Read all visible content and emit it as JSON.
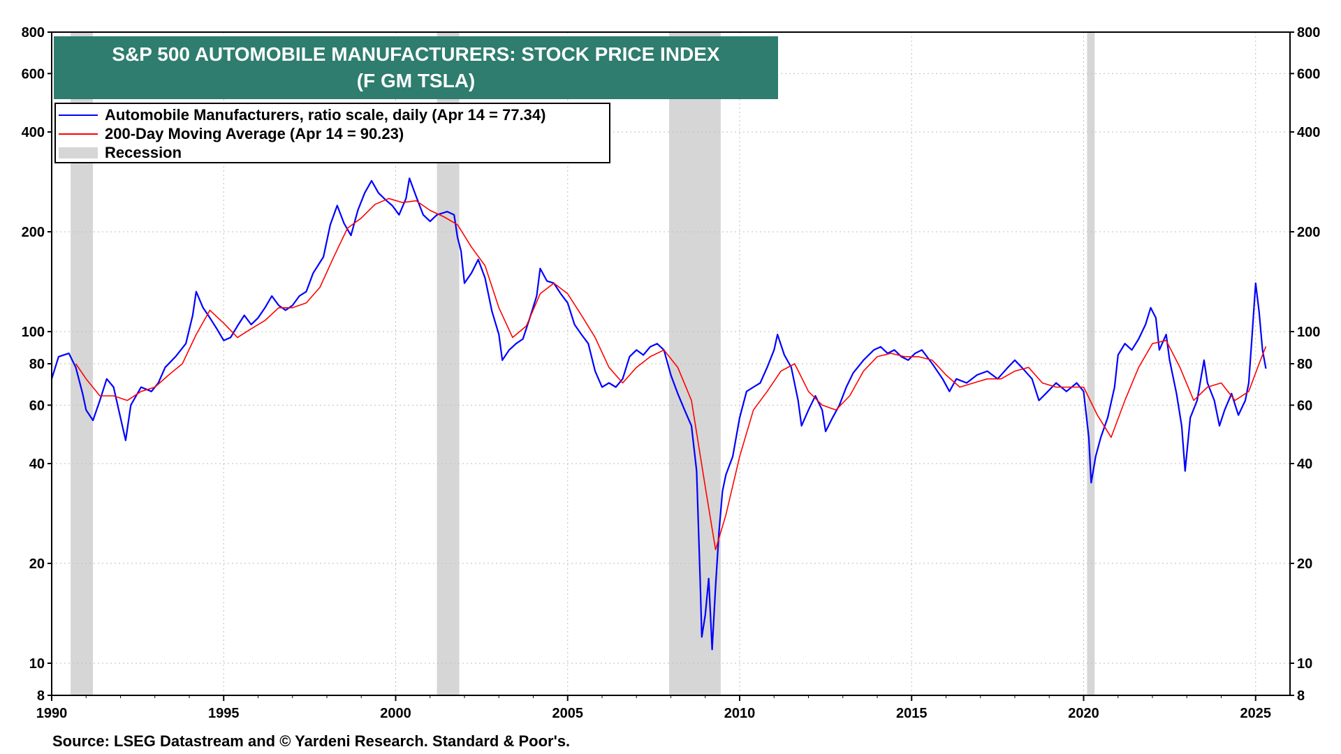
{
  "title": {
    "line1": "S&P 500 AUTOMOBILE MANUFACTURERS: STOCK PRICE INDEX",
    "line2": "(F GM TSLA)"
  },
  "legend": {
    "items": [
      {
        "label": "Automobile Manufacturers, ratio scale, daily (Apr 14 = 77.34)",
        "color": "#0000ff",
        "kind": "line"
      },
      {
        "label": "200-Day Moving Average (Apr 14 = 90.23)",
        "color": "#ff0000",
        "kind": "line"
      },
      {
        "label": "Recession",
        "color": "#d6d6d6",
        "kind": "box"
      }
    ]
  },
  "source": "Source: LSEG Datastream and © Yardeni Research. Standard & Poor's.",
  "chart_data": {
    "type": "line",
    "yscale": "log",
    "xlim": [
      1990,
      2026
    ],
    "ylim": [
      8,
      800
    ],
    "x_ticks": [
      1990,
      1995,
      2000,
      2005,
      2010,
      2015,
      2020,
      2025
    ],
    "y_ticks": [
      8,
      10,
      20,
      40,
      60,
      80,
      100,
      200,
      400,
      600,
      800
    ],
    "grid": true,
    "legend_position": "top-left",
    "recessions": [
      [
        1990.55,
        1991.2
      ],
      [
        2001.2,
        2001.85
      ],
      [
        2007.95,
        2009.45
      ],
      [
        2020.1,
        2020.32
      ]
    ],
    "series": [
      {
        "name": "Automobile Manufacturers, ratio scale, daily",
        "color": "#0000ff",
        "points": [
          [
            1990.0,
            72
          ],
          [
            1990.2,
            84
          ],
          [
            1990.5,
            86
          ],
          [
            1990.7,
            78
          ],
          [
            1990.9,
            65
          ],
          [
            1991.0,
            58
          ],
          [
            1991.2,
            54
          ],
          [
            1991.4,
            62
          ],
          [
            1991.6,
            72
          ],
          [
            1991.8,
            68
          ],
          [
            1992.0,
            55
          ],
          [
            1992.15,
            47
          ],
          [
            1992.3,
            60
          ],
          [
            1992.6,
            68
          ],
          [
            1992.9,
            66
          ],
          [
            1993.1,
            70
          ],
          [
            1993.3,
            78
          ],
          [
            1993.6,
            84
          ],
          [
            1993.9,
            92
          ],
          [
            1994.1,
            112
          ],
          [
            1994.2,
            132
          ],
          [
            1994.4,
            118
          ],
          [
            1994.6,
            110
          ],
          [
            1994.8,
            102
          ],
          [
            1995.0,
            94
          ],
          [
            1995.2,
            96
          ],
          [
            1995.4,
            104
          ],
          [
            1995.6,
            112
          ],
          [
            1995.8,
            105
          ],
          [
            1996.0,
            110
          ],
          [
            1996.2,
            118
          ],
          [
            1996.4,
            128
          ],
          [
            1996.6,
            120
          ],
          [
            1996.8,
            116
          ],
          [
            1997.0,
            120
          ],
          [
            1997.2,
            128
          ],
          [
            1997.4,
            132
          ],
          [
            1997.6,
            150
          ],
          [
            1997.9,
            168
          ],
          [
            1998.1,
            210
          ],
          [
            1998.3,
            240
          ],
          [
            1998.5,
            212
          ],
          [
            1998.7,
            195
          ],
          [
            1998.9,
            232
          ],
          [
            1999.1,
            262
          ],
          [
            1999.3,
            285
          ],
          [
            1999.5,
            262
          ],
          [
            1999.7,
            250
          ],
          [
            1999.9,
            240
          ],
          [
            2000.1,
            225
          ],
          [
            2000.3,
            252
          ],
          [
            2000.4,
            290
          ],
          [
            2000.6,
            255
          ],
          [
            2000.8,
            225
          ],
          [
            2001.0,
            215
          ],
          [
            2001.2,
            225
          ],
          [
            2001.5,
            230
          ],
          [
            2001.7,
            225
          ],
          [
            2001.8,
            192
          ],
          [
            2001.9,
            175
          ],
          [
            2002.0,
            140
          ],
          [
            2002.2,
            150
          ],
          [
            2002.4,
            165
          ],
          [
            2002.6,
            145
          ],
          [
            2002.8,
            115
          ],
          [
            2003.0,
            98
          ],
          [
            2003.1,
            82
          ],
          [
            2003.3,
            88
          ],
          [
            2003.5,
            92
          ],
          [
            2003.7,
            95
          ],
          [
            2003.9,
            110
          ],
          [
            2004.1,
            128
          ],
          [
            2004.2,
            155
          ],
          [
            2004.4,
            142
          ],
          [
            2004.6,
            140
          ],
          [
            2004.8,
            130
          ],
          [
            2005.0,
            122
          ],
          [
            2005.2,
            105
          ],
          [
            2005.4,
            98
          ],
          [
            2005.6,
            92
          ],
          [
            2005.8,
            76
          ],
          [
            2006.0,
            68
          ],
          [
            2006.2,
            70
          ],
          [
            2006.4,
            68
          ],
          [
            2006.6,
            72
          ],
          [
            2006.8,
            84
          ],
          [
            2007.0,
            88
          ],
          [
            2007.2,
            85
          ],
          [
            2007.4,
            90
          ],
          [
            2007.6,
            92
          ],
          [
            2007.8,
            88
          ],
          [
            2008.0,
            74
          ],
          [
            2008.2,
            65
          ],
          [
            2008.4,
            58
          ],
          [
            2008.6,
            52
          ],
          [
            2008.75,
            38
          ],
          [
            2008.85,
            18
          ],
          [
            2008.9,
            12
          ],
          [
            2009.0,
            14
          ],
          [
            2009.1,
            18
          ],
          [
            2009.2,
            11
          ],
          [
            2009.3,
            17
          ],
          [
            2009.4,
            25
          ],
          [
            2009.5,
            33
          ],
          [
            2009.6,
            37
          ],
          [
            2009.8,
            42
          ],
          [
            2010.0,
            55
          ],
          [
            2010.2,
            66
          ],
          [
            2010.4,
            68
          ],
          [
            2010.6,
            70
          ],
          [
            2010.8,
            78
          ],
          [
            2011.0,
            88
          ],
          [
            2011.1,
            98
          ],
          [
            2011.3,
            85
          ],
          [
            2011.5,
            78
          ],
          [
            2011.7,
            62
          ],
          [
            2011.8,
            52
          ],
          [
            2012.0,
            58
          ],
          [
            2012.2,
            64
          ],
          [
            2012.4,
            58
          ],
          [
            2012.5,
            50
          ],
          [
            2012.7,
            55
          ],
          [
            2012.9,
            60
          ],
          [
            2013.1,
            68
          ],
          [
            2013.3,
            75
          ],
          [
            2013.6,
            82
          ],
          [
            2013.9,
            88
          ],
          [
            2014.1,
            90
          ],
          [
            2014.3,
            86
          ],
          [
            2014.5,
            88
          ],
          [
            2014.7,
            84
          ],
          [
            2014.9,
            82
          ],
          [
            2015.1,
            86
          ],
          [
            2015.3,
            88
          ],
          [
            2015.6,
            80
          ],
          [
            2015.9,
            72
          ],
          [
            2016.1,
            66
          ],
          [
            2016.3,
            72
          ],
          [
            2016.6,
            70
          ],
          [
            2016.9,
            74
          ],
          [
            2017.2,
            76
          ],
          [
            2017.5,
            72
          ],
          [
            2017.8,
            78
          ],
          [
            2018.0,
            82
          ],
          [
            2018.2,
            78
          ],
          [
            2018.5,
            72
          ],
          [
            2018.7,
            62
          ],
          [
            2018.9,
            65
          ],
          [
            2019.2,
            70
          ],
          [
            2019.5,
            66
          ],
          [
            2019.8,
            70
          ],
          [
            2020.0,
            66
          ],
          [
            2020.15,
            48
          ],
          [
            2020.22,
            35
          ],
          [
            2020.35,
            42
          ],
          [
            2020.5,
            48
          ],
          [
            2020.7,
            55
          ],
          [
            2020.9,
            68
          ],
          [
            2021.0,
            85
          ],
          [
            2021.2,
            92
          ],
          [
            2021.4,
            88
          ],
          [
            2021.6,
            95
          ],
          [
            2021.8,
            105
          ],
          [
            2021.95,
            118
          ],
          [
            2022.1,
            110
          ],
          [
            2022.2,
            88
          ],
          [
            2022.4,
            98
          ],
          [
            2022.5,
            82
          ],
          [
            2022.7,
            65
          ],
          [
            2022.85,
            52
          ],
          [
            2022.95,
            38
          ],
          [
            2023.1,
            55
          ],
          [
            2023.3,
            62
          ],
          [
            2023.5,
            82
          ],
          [
            2023.6,
            70
          ],
          [
            2023.8,
            62
          ],
          [
            2023.95,
            52
          ],
          [
            2024.1,
            58
          ],
          [
            2024.3,
            65
          ],
          [
            2024.5,
            56
          ],
          [
            2024.7,
            62
          ],
          [
            2024.8,
            70
          ],
          [
            2024.9,
            98
          ],
          [
            2025.0,
            140
          ],
          [
            2025.1,
            115
          ],
          [
            2025.2,
            88
          ],
          [
            2025.3,
            77.34
          ]
        ]
      },
      {
        "name": "200-Day Moving Average",
        "color": "#ff0000",
        "points": [
          [
            1990.7,
            80
          ],
          [
            1991.0,
            72
          ],
          [
            1991.4,
            64
          ],
          [
            1991.8,
            64
          ],
          [
            1992.2,
            62
          ],
          [
            1992.6,
            66
          ],
          [
            1993.0,
            68
          ],
          [
            1993.4,
            74
          ],
          [
            1993.8,
            80
          ],
          [
            1994.2,
            98
          ],
          [
            1994.6,
            116
          ],
          [
            1995.0,
            106
          ],
          [
            1995.4,
            96
          ],
          [
            1995.8,
            102
          ],
          [
            1996.2,
            108
          ],
          [
            1996.6,
            118
          ],
          [
            1997.0,
            118
          ],
          [
            1997.4,
            122
          ],
          [
            1997.8,
            136
          ],
          [
            1998.2,
            168
          ],
          [
            1998.6,
            205
          ],
          [
            1999.0,
            220
          ],
          [
            1999.4,
            242
          ],
          [
            1999.8,
            252
          ],
          [
            2000.2,
            245
          ],
          [
            2000.6,
            248
          ],
          [
            2001.0,
            232
          ],
          [
            2001.4,
            222
          ],
          [
            2001.8,
            210
          ],
          [
            2002.2,
            180
          ],
          [
            2002.6,
            158
          ],
          [
            2003.0,
            118
          ],
          [
            2003.4,
            96
          ],
          [
            2003.8,
            104
          ],
          [
            2004.2,
            130
          ],
          [
            2004.6,
            140
          ],
          [
            2005.0,
            130
          ],
          [
            2005.4,
            112
          ],
          [
            2005.8,
            96
          ],
          [
            2006.2,
            78
          ],
          [
            2006.6,
            70
          ],
          [
            2007.0,
            78
          ],
          [
            2007.4,
            84
          ],
          [
            2007.8,
            88
          ],
          [
            2008.2,
            78
          ],
          [
            2008.6,
            62
          ],
          [
            2009.0,
            34
          ],
          [
            2009.3,
            22
          ],
          [
            2009.6,
            28
          ],
          [
            2010.0,
            42
          ],
          [
            2010.4,
            58
          ],
          [
            2010.8,
            66
          ],
          [
            2011.2,
            76
          ],
          [
            2011.6,
            80
          ],
          [
            2012.0,
            66
          ],
          [
            2012.4,
            60
          ],
          [
            2012.8,
            58
          ],
          [
            2013.2,
            64
          ],
          [
            2013.6,
            76
          ],
          [
            2014.0,
            84
          ],
          [
            2014.4,
            86
          ],
          [
            2014.8,
            84
          ],
          [
            2015.2,
            84
          ],
          [
            2015.6,
            82
          ],
          [
            2016.0,
            74
          ],
          [
            2016.4,
            68
          ],
          [
            2016.8,
            70
          ],
          [
            2017.2,
            72
          ],
          [
            2017.6,
            72
          ],
          [
            2018.0,
            76
          ],
          [
            2018.4,
            78
          ],
          [
            2018.8,
            70
          ],
          [
            2019.2,
            68
          ],
          [
            2019.6,
            68
          ],
          [
            2020.0,
            68
          ],
          [
            2020.4,
            56
          ],
          [
            2020.8,
            48
          ],
          [
            2021.2,
            62
          ],
          [
            2021.6,
            78
          ],
          [
            2022.0,
            92
          ],
          [
            2022.4,
            94
          ],
          [
            2022.8,
            78
          ],
          [
            2023.2,
            62
          ],
          [
            2023.6,
            68
          ],
          [
            2024.0,
            70
          ],
          [
            2024.4,
            62
          ],
          [
            2024.8,
            66
          ],
          [
            2025.1,
            80
          ],
          [
            2025.3,
            90.23
          ]
        ]
      }
    ]
  }
}
